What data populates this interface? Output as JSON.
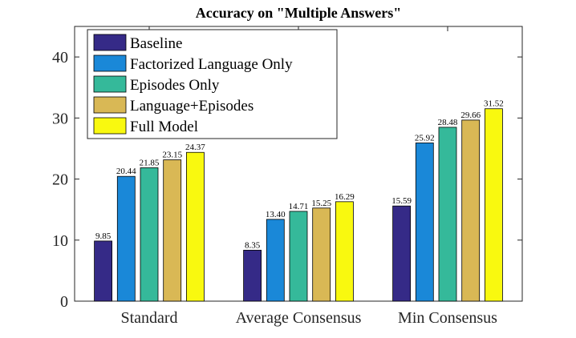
{
  "chart_data": {
    "type": "bar",
    "title": "Accuracy on \"Multiple Answers\"",
    "xlabel": "",
    "ylabel": "",
    "ylim": [
      0,
      45
    ],
    "yticks": [
      0,
      10,
      20,
      30,
      40
    ],
    "grid": false,
    "legend_position": "top-left",
    "categories": [
      "Standard",
      "Average Consensus",
      "Min Consensus"
    ],
    "series": [
      {
        "name": "Baseline",
        "color": "#352a87",
        "values": [
          9.85,
          8.35,
          15.59
        ],
        "labels": [
          "9.85",
          "8.35",
          "15.59"
        ]
      },
      {
        "name": "Factorized Language Only",
        "color": "#1a88d8",
        "values": [
          20.44,
          13.4,
          25.92
        ],
        "labels": [
          "20.44",
          "13.40",
          "25.92"
        ]
      },
      {
        "name": "Episodes Only",
        "color": "#35b99a",
        "values": [
          21.85,
          14.71,
          28.48
        ],
        "labels": [
          "21.85",
          "14.71",
          "28.48"
        ]
      },
      {
        "name": "Language+Episodes",
        "color": "#d9b855",
        "values": [
          23.15,
          15.25,
          29.66
        ],
        "labels": [
          "23.15",
          "15.25",
          "29.66"
        ]
      },
      {
        "name": "Full Model",
        "color": "#f9f90f",
        "values": [
          24.37,
          16.29,
          31.52
        ],
        "labels": [
          "24.37",
          "16.29",
          "31.52"
        ]
      }
    ]
  }
}
